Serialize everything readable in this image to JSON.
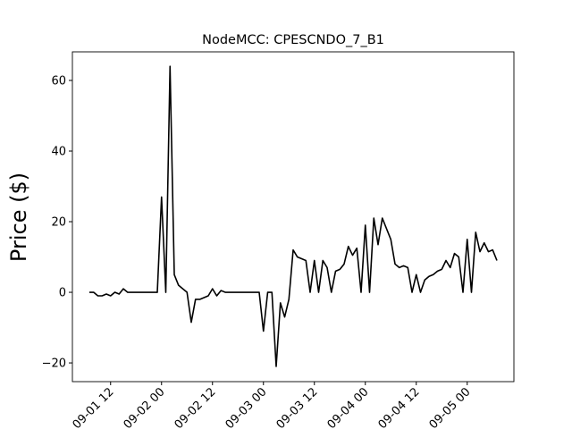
{
  "chart_data": {
    "type": "line",
    "title": "NodeMCC: CPESCNDO_7_B1",
    "y_label": "Price ($)",
    "x": [
      "09-01 07",
      "09-01 08",
      "09-01 09",
      "09-01 10",
      "09-01 11",
      "09-01 12",
      "09-01 13",
      "09-01 14",
      "09-01 15",
      "09-01 16",
      "09-01 17",
      "09-01 18",
      "09-01 19",
      "09-01 20",
      "09-01 21",
      "09-01 22",
      "09-01 23",
      "09-02 00",
      "09-02 01",
      "09-02 02",
      "09-02 03",
      "09-02 04",
      "09-02 05",
      "09-02 06",
      "09-02 07",
      "09-02 08",
      "09-02 09",
      "09-02 10",
      "09-02 11",
      "09-02 12",
      "09-02 13",
      "09-02 14",
      "09-02 15",
      "09-02 16",
      "09-02 17",
      "09-02 18",
      "09-02 19",
      "09-02 20",
      "09-02 21",
      "09-02 22",
      "09-02 23",
      "09-03 00",
      "09-03 01",
      "09-03 02",
      "09-03 03",
      "09-03 04",
      "09-03 05",
      "09-03 06",
      "09-03 07",
      "09-03 08",
      "09-03 09",
      "09-03 10",
      "09-03 11",
      "09-03 12",
      "09-03 13",
      "09-03 14",
      "09-03 15",
      "09-03 16",
      "09-03 17",
      "09-03 18",
      "09-03 19",
      "09-03 20",
      "09-03 21",
      "09-03 22",
      "09-03 23",
      "09-04 00",
      "09-04 01",
      "09-04 02",
      "09-04 03",
      "09-04 04",
      "09-04 05",
      "09-04 06",
      "09-04 07",
      "09-04 08",
      "09-04 09",
      "09-04 10",
      "09-04 11",
      "09-04 12",
      "09-04 13",
      "09-04 14",
      "09-04 15",
      "09-04 16",
      "09-04 17",
      "09-04 18",
      "09-04 19",
      "09-04 20",
      "09-04 21",
      "09-04 22",
      "09-04 23",
      "09-05 00",
      "09-05 01",
      "09-05 02",
      "09-05 03",
      "09-05 04",
      "09-05 05",
      "09-05 06",
      "09-05 07"
    ],
    "series": [
      {
        "color": "#000000",
        "values": [
          0,
          0,
          -1,
          -1,
          -0.5,
          -1,
          0,
          -0.5,
          1,
          0,
          0,
          0,
          0,
          0,
          0,
          0,
          0,
          27,
          0,
          64,
          5,
          2,
          1,
          0,
          -8.5,
          -2,
          -2,
          -1.5,
          -1,
          1,
          -1,
          0.5,
          0,
          0,
          0,
          0,
          0,
          0,
          0,
          0,
          0,
          -11,
          0,
          0,
          -21,
          -3,
          -7,
          -2,
          12,
          10,
          9.5,
          9,
          0,
          9,
          0,
          9,
          7,
          0,
          6,
          6.5,
          8,
          13,
          10.5,
          12.5,
          0,
          19,
          0,
          21,
          13.5,
          21,
          18,
          15,
          8,
          7,
          7.5,
          7,
          0,
          5,
          0,
          3.5,
          4.5,
          5,
          6,
          6.5,
          9,
          7,
          11,
          10,
          0,
          15,
          0,
          17,
          11.5,
          14,
          11.5,
          12,
          9
        ]
      }
    ],
    "xlim": [
      "09-01 03",
      "09-05 11"
    ],
    "xticks": [
      "09-01 12",
      "09-02 00",
      "09-02 12",
      "09-03 00",
      "09-03 12",
      "09-04 00",
      "09-04 12",
      "09-05 00"
    ],
    "ylim": [
      -25.3,
      68.1
    ],
    "yticks": [
      {
        "value": -20,
        "label": "−20"
      },
      0,
      20,
      40,
      60
    ]
  }
}
